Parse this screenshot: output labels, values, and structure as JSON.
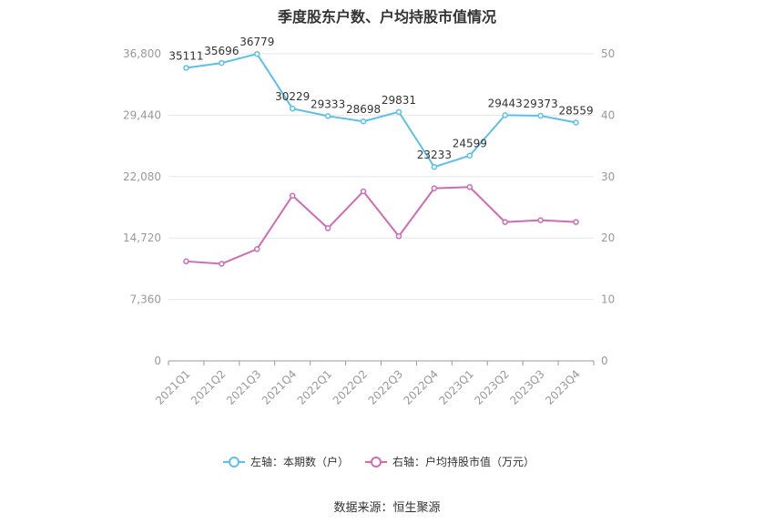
{
  "title": "季度股东户数、户均持股市值情况",
  "source": "数据来源：恒生聚源",
  "chart_data": {
    "type": "line",
    "categories": [
      "2021Q1",
      "2021Q2",
      "2021Q3",
      "2021Q4",
      "2022Q1",
      "2022Q2",
      "2022Q3",
      "2022Q4",
      "2023Q1",
      "2023Q2",
      "2023Q3",
      "2023Q4"
    ],
    "series": [
      {
        "name": "左轴：本期数（户）",
        "axis": "left",
        "color": "#5bc0eb",
        "values": [
          35111,
          35696,
          36779,
          30229,
          29333,
          28698,
          29831,
          23233,
          24599,
          29443,
          29373,
          28559
        ],
        "labels": [
          "35111",
          "35696",
          "36779",
          "30229",
          "29333",
          "28698",
          "29831",
          "23233",
          "24599",
          "29443",
          "29373",
          "28559"
        ]
      },
      {
        "name": "右轴：户均持股市值（万元）",
        "axis": "right",
        "color": "#d16bb4",
        "values": [
          16.2,
          15.8,
          18.2,
          26.9,
          21.6,
          27.6,
          20.3,
          28.1,
          28.3,
          22.6,
          22.9,
          22.6
        ]
      }
    ],
    "left_axis": {
      "ylim": [
        0,
        36800
      ],
      "ticks": [
        "0",
        "7,360",
        "14,720",
        "22,080",
        "29,440",
        "36,800"
      ],
      "tick_values": [
        0,
        7360,
        14720,
        22080,
        29440,
        36800
      ]
    },
    "right_axis": {
      "ylim": [
        0,
        50
      ],
      "ticks": [
        "0",
        "10",
        "20",
        "30",
        "40",
        "50"
      ],
      "tick_values": [
        0,
        10,
        20,
        30,
        40,
        50
      ]
    },
    "grid": true,
    "legend_position": "bottom-center"
  }
}
